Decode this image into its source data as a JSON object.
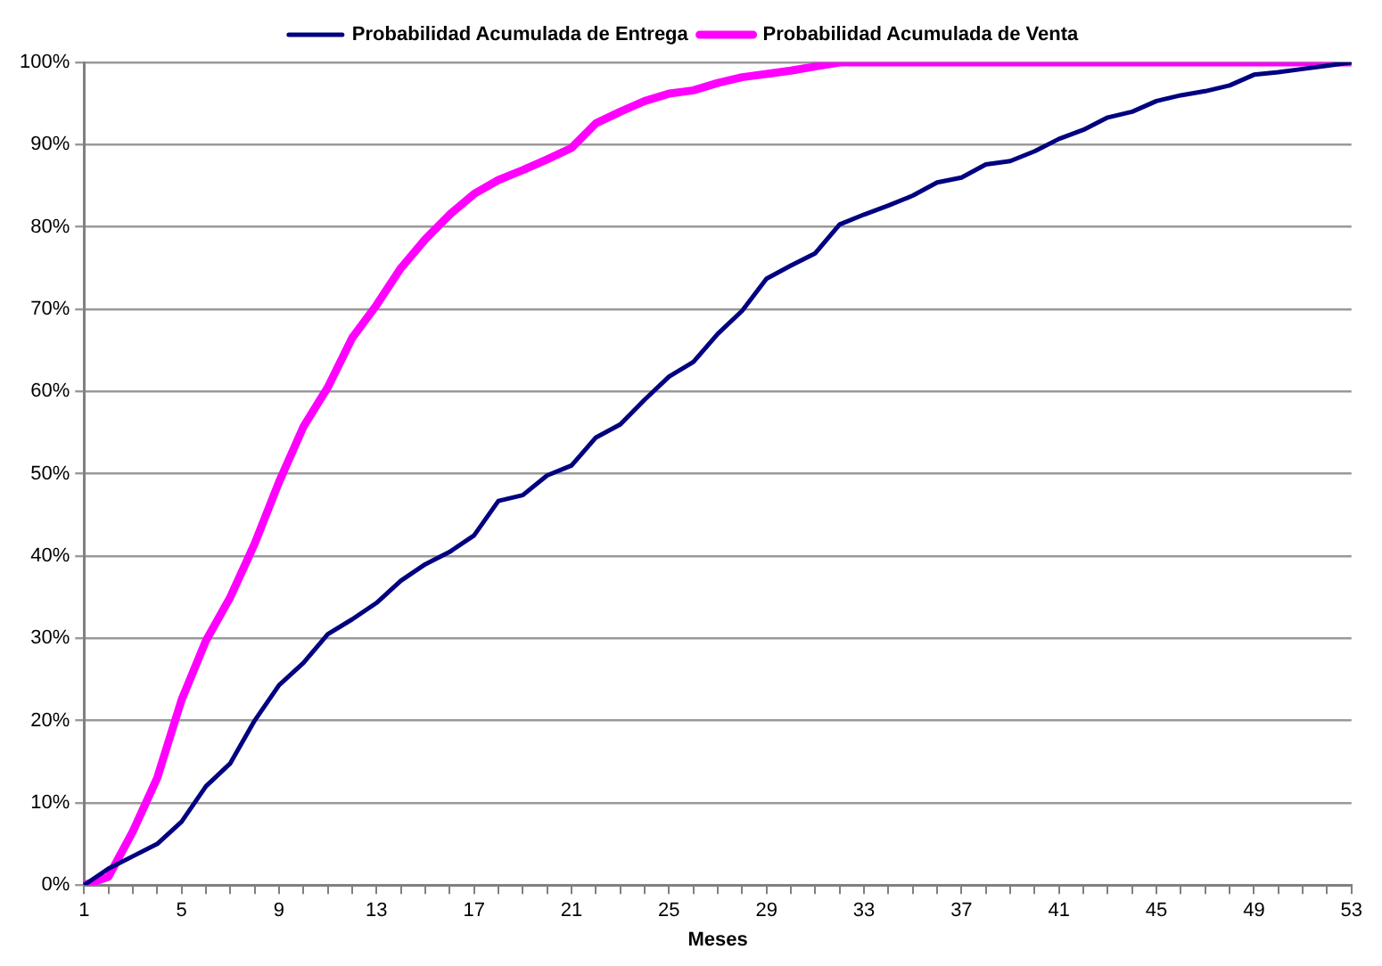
{
  "chart_data": {
    "type": "line",
    "xlabel": "Meses",
    "categories": [
      "1",
      null,
      null,
      null,
      "5",
      null,
      null,
      null,
      "9",
      null,
      null,
      null,
      "13",
      null,
      null,
      null,
      "17",
      null,
      null,
      null,
      "21",
      null,
      null,
      null,
      "25",
      null,
      null,
      null,
      "29",
      null,
      null,
      null,
      "33",
      null,
      null,
      null,
      "37",
      null,
      null,
      null,
      "41",
      null,
      null,
      null,
      "45",
      null,
      null,
      null,
      "49",
      null,
      null,
      null,
      "53"
    ],
    "series": [
      {
        "name": "Probabilidad Acumulada de Entrega",
        "color": "#000080",
        "values": [
          0,
          2,
          3.5,
          5,
          7.7,
          12,
          14.8,
          20,
          24.3,
          27,
          30.5,
          32.3,
          34.3,
          37,
          39,
          40.5,
          42.5,
          46.7,
          47.4,
          49.8,
          51,
          54.4,
          56,
          59,
          61.8,
          63.6,
          67,
          69.8,
          73.7,
          75.3,
          76.8,
          80.3,
          81.5,
          82.6,
          83.8,
          85.4,
          86,
          87.6,
          88,
          89.2,
          90.7,
          91.8,
          93.3,
          94,
          95.3,
          96,
          96.5,
          97.2,
          98.5,
          98.8,
          99.2,
          99.6,
          100
        ]
      },
      {
        "name": "Probabilidad Acumulada de Venta",
        "color": "#ff00ff",
        "values": [
          0,
          1,
          6.5,
          13,
          22.5,
          29.7,
          35,
          41.5,
          49,
          55.7,
          60.5,
          66.5,
          70.5,
          75,
          78.5,
          81.5,
          84,
          85.7,
          86.9,
          88.2,
          89.6,
          92.6,
          94,
          95.3,
          96.2,
          96.6,
          97.5,
          98.2,
          98.6,
          99,
          99.5,
          100,
          100,
          100,
          100,
          100,
          100,
          100,
          100,
          100,
          100,
          100,
          100,
          100,
          100,
          100,
          100,
          100,
          100,
          100,
          100,
          100,
          100
        ]
      }
    ],
    "ylim": [
      0,
      100
    ],
    "yticks": [
      {
        "value": 0,
        "label": "0%"
      },
      {
        "value": 10,
        "label": "10%"
      },
      {
        "value": 20,
        "label": "20%"
      },
      {
        "value": 30,
        "label": "30%"
      },
      {
        "value": 40,
        "label": "40%"
      },
      {
        "value": 50,
        "label": "50%"
      },
      {
        "value": 60,
        "label": "60%"
      },
      {
        "value": 70,
        "label": "70%"
      },
      {
        "value": 80,
        "label": "80%"
      },
      {
        "value": 90,
        "label": "90%"
      },
      {
        "value": 100,
        "label": "100%"
      }
    ],
    "grid": "y",
    "legend": "top",
    "marker": "none",
    "line_style": "solid"
  }
}
